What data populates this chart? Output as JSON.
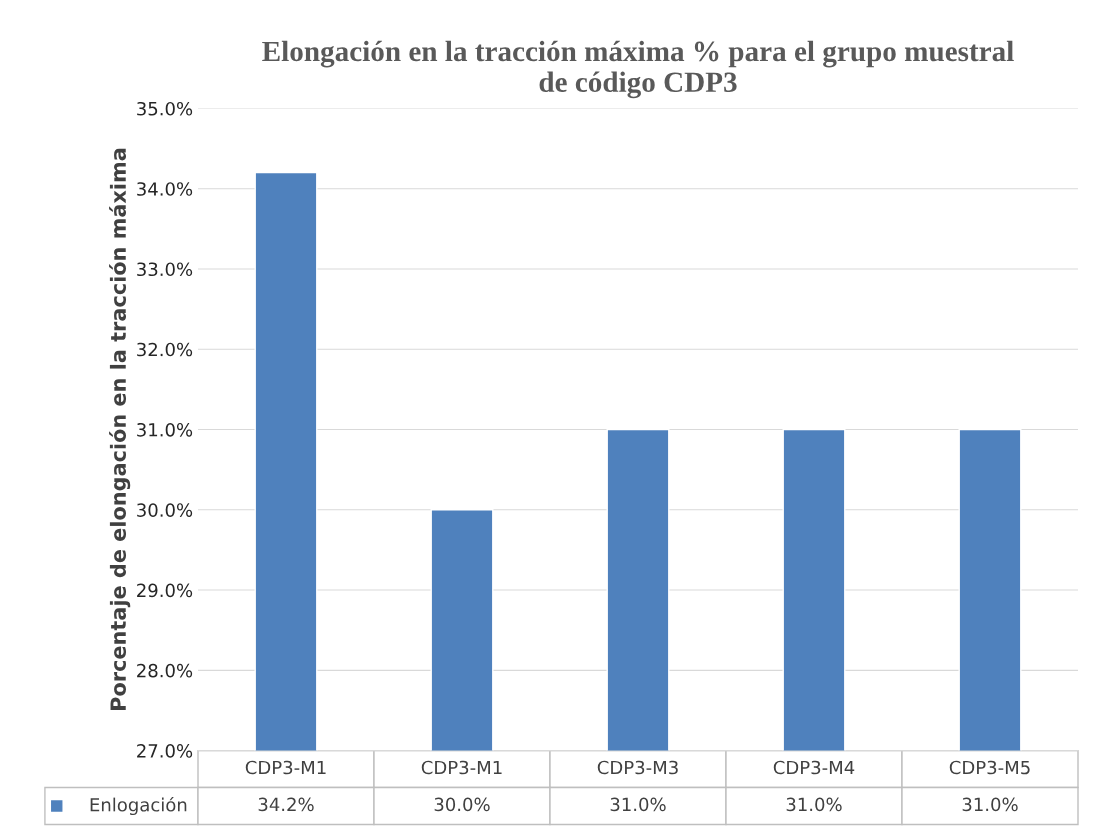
{
  "chart_data": {
    "type": "bar",
    "title": "Elongación en la tracción máxima % para el grupo muestral\nde código CDP3",
    "ylabel": "Porcentaje de elongación en la tracción máxima",
    "categories": [
      "CDP3-M1",
      "CDP3-M1",
      "CDP3-M3",
      "CDP3-M4",
      "CDP3-M5"
    ],
    "series": [
      {
        "name": "Enlogación",
        "color": "#4f81bd",
        "values": [
          34.2,
          30.0,
          31.0,
          31.0,
          31.0
        ],
        "value_labels": [
          "34.2%",
          "30.0%",
          "31.0%",
          "31.0%",
          "31.0%"
        ]
      }
    ],
    "ylim": [
      27,
      35
    ],
    "yticks": [
      {
        "value": 27,
        "label": "27.0%"
      },
      {
        "value": 28,
        "label": "28.0%"
      },
      {
        "value": 29,
        "label": "29.0%"
      },
      {
        "value": 30,
        "label": "30.0%"
      },
      {
        "value": 31,
        "label": "31.0%"
      },
      {
        "value": 32,
        "label": "32.0%"
      },
      {
        "value": 33,
        "label": "33.0%"
      },
      {
        "value": 34,
        "label": "34.0%"
      },
      {
        "value": 35,
        "label": "35.0%"
      }
    ],
    "grid": "y",
    "legend": "bottom"
  }
}
